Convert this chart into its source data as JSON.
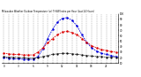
{
  "title": "Milwaukee Weather Outdoor Temperature (vs) THSW Index per Hour (Last 24 Hours)",
  "hours": [
    0,
    1,
    2,
    3,
    4,
    5,
    6,
    7,
    8,
    9,
    10,
    11,
    12,
    13,
    14,
    15,
    16,
    17,
    18,
    19,
    20,
    21,
    22,
    23
  ],
  "temp": [
    28,
    27,
    26,
    26,
    25,
    25,
    25,
    30,
    38,
    47,
    55,
    62,
    67,
    68,
    66,
    62,
    55,
    48,
    42,
    38,
    35,
    33,
    31,
    30
  ],
  "thsw": [
    20,
    19,
    18,
    18,
    17,
    17,
    17,
    22,
    36,
    55,
    72,
    85,
    92,
    93,
    88,
    78,
    62,
    48,
    38,
    32,
    28,
    26,
    24,
    22
  ],
  "dewpoint": [
    22,
    21,
    21,
    20,
    20,
    19,
    19,
    20,
    22,
    24,
    26,
    27,
    28,
    28,
    27,
    26,
    25,
    24,
    23,
    22,
    22,
    21,
    21,
    21
  ],
  "temp_color": "#dd0000",
  "thsw_color": "#0000dd",
  "dew_color": "#000000",
  "ylim": [
    10,
    100
  ],
  "yticks": [
    10,
    20,
    30,
    40,
    50,
    60,
    70,
    80,
    90,
    100
  ],
  "ytick_labels": [
    "10",
    "20",
    "30",
    "40",
    "50",
    "60",
    "70",
    "80",
    "90",
    "100"
  ],
  "background_color": "#ffffff",
  "grid_color": "#888888"
}
